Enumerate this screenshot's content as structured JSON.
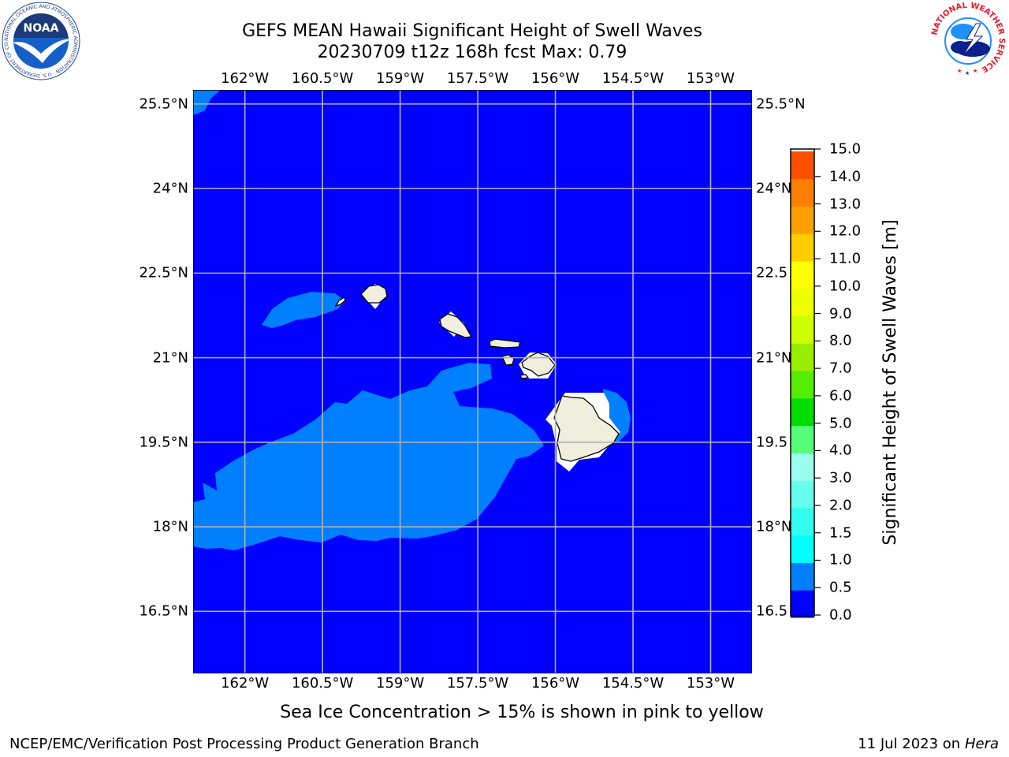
{
  "title_line1": "GEFS MEAN Hawaii Significant Height of Swell Waves",
  "title_line2": "20230709 t12z 168h fcst   Max: 0.79",
  "lon_ticks": [
    {
      "label": "162°W",
      "lon": -162
    },
    {
      "label": "160.5°W",
      "lon": -160.5
    },
    {
      "label": "159°W",
      "lon": -159
    },
    {
      "label": "157.5°W",
      "lon": -157.5
    },
    {
      "label": "156°W",
      "lon": -156
    },
    {
      "label": "154.5°W",
      "lon": -154.5
    },
    {
      "label": "153°W",
      "lon": -153
    }
  ],
  "lat_ticks": [
    {
      "label": "25.5°N",
      "right_label": "25.5°N",
      "lat": 25.5
    },
    {
      "label": "24°N",
      "right_label": "24°N",
      "lat": 24
    },
    {
      "label": "22.5°N",
      "right_label": "22.5",
      "lat": 22.5
    },
    {
      "label": "21°N",
      "right_label": "21°N",
      "lat": 21
    },
    {
      "label": "19.5°N",
      "right_label": "19.5",
      "lat": 19.5
    },
    {
      "label": "18°N",
      "right_label": "18°N",
      "lat": 18
    },
    {
      "label": "16.5°N",
      "right_label": "16.5",
      "lat": 16.5
    }
  ],
  "map_extent": {
    "lon_min": -163,
    "lon_max": -152.2,
    "lat_min": 15.4,
    "lat_max": 25.75
  },
  "colorbar": {
    "label": "Significant Height of Swell Waves [m]",
    "levels": [
      "0.0",
      "0.5",
      "1.0",
      "1.5",
      "2.0",
      "3.0",
      "4.0",
      "5.0",
      "6.0",
      "7.0",
      "8.0",
      "9.0",
      "10.0",
      "11.0",
      "12.0",
      "13.0",
      "14.0",
      "15.0"
    ],
    "colors": [
      "#0000ff",
      "#0080ff",
      "#00ffff",
      "#33ffee",
      "#66ffee",
      "#99ffee",
      "#55ff77",
      "#00dd00",
      "#55ee00",
      "#99ee00",
      "#ccff00",
      "#eeff00",
      "#ffff00",
      "#ffcc00",
      "#ffa000",
      "#ff8000",
      "#ff5000",
      "#ff2000",
      "#ff0000"
    ]
  },
  "colors": {
    "ocean": "#0000ff",
    "swell_0_5_to_1": "#0080ff",
    "land": "#f0eedc",
    "grid": "#b0b0b0"
  },
  "subtitle": "Sea Ice Concentration > 15% is shown in pink to yellow",
  "footer_left": "NCEP/EMC/Verification Post Processing Product Generation Branch",
  "footer_date": "11 Jul 2023 on ",
  "footer_machine": "Hera",
  "logos": {
    "noaa_text": "NOAA",
    "noaa_ring": "NATIONAL OCEANIC AND ATMOSPHERIC ADMINISTRATION · U.S. DEPARTMENT OF COMMERCE ·",
    "nws_ring": "NATIONAL WEATHER SERVICE"
  }
}
